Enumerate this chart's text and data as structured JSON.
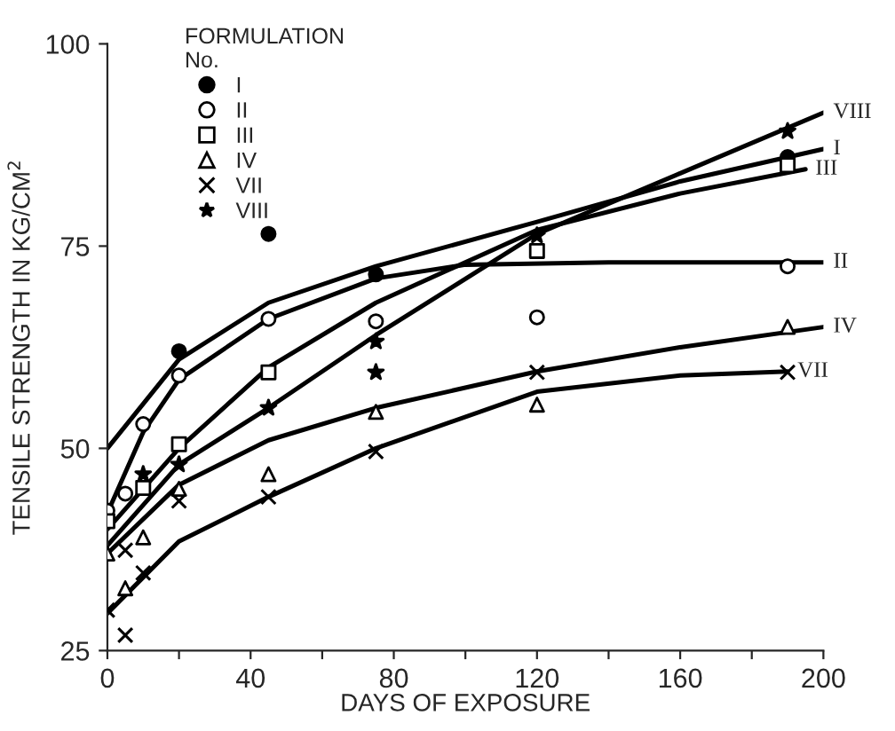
{
  "chart_data": {
    "type": "scatter",
    "xlabel": "DAYS OF EXPOSURE",
    "ylabel": "TENSILE STRENGTH IN KG/CM$^{2}$",
    "legend_title": "FORMULATION\nNo.",
    "legend": "top left",
    "grid": false,
    "xlim": [
      0,
      200
    ],
    "ylim": [
      25,
      100
    ],
    "xticks": [
      0,
      {
        "value": 20,
        "label": null
      },
      40,
      {
        "value": 60,
        "label": null
      },
      80,
      {
        "value": 100,
        "label": null
      },
      120,
      {
        "value": 140,
        "label": null
      },
      160,
      {
        "value": 180,
        "label": null
      },
      200
    ],
    "yticks": [
      25,
      50,
      75,
      100
    ],
    "series": [
      {
        "name": "I",
        "marker": "circle",
        "color": "#000000",
        "x": [
          20,
          45,
          75,
          190
        ],
        "values": [
          62,
          76.5,
          71.5,
          86
        ]
      },
      {
        "name": "II",
        "marker": "circle",
        "color": "#ffffff",
        "x": [
          0,
          5,
          10,
          20,
          45,
          75,
          120,
          190
        ],
        "values": [
          42.3,
          44.4,
          53,
          59,
          66,
          65.7,
          66.2,
          72.5
        ]
      },
      {
        "name": "III",
        "marker": "square",
        "color": "#ffffff",
        "x": [
          0,
          10,
          20,
          45,
          120,
          190
        ],
        "values": [
          41,
          45.1,
          50.5,
          59.4,
          74.4,
          85
        ]
      },
      {
        "name": "IV",
        "marker": "triangle",
        "color": "#ffffff",
        "x": [
          0,
          5,
          10,
          20,
          45,
          75,
          120,
          190
        ],
        "values": [
          37,
          32.7,
          39,
          45,
          46.8,
          54.5,
          55.4,
          65
        ]
      },
      {
        "name": "VII",
        "marker": "cross",
        "color": "#000000",
        "x": [
          0,
          5,
          5,
          10,
          20,
          45,
          75,
          120,
          190
        ],
        "values": [
          30,
          26.9,
          37.4,
          34.6,
          43.5,
          44,
          49.6,
          59.4,
          59.4
        ]
      },
      {
        "name": "VIII",
        "marker": "star",
        "color": "#000000",
        "x": [
          10,
          20,
          45,
          75,
          75,
          120,
          190
        ],
        "values": [
          46.8,
          48,
          55,
          63.2,
          59.4,
          76.3,
          89.2
        ]
      },
      {
        "name": "I",
        "type": "line",
        "color": "#000000",
        "x": [
          0,
          20,
          45,
          75,
          120,
          160,
          200
        ],
        "values": [
          50,
          61,
          68,
          72.5,
          78,
          83,
          87
        ]
      },
      {
        "name": "II",
        "type": "line",
        "color": "#000000",
        "x": [
          0,
          10,
          20,
          45,
          75,
          100,
          140,
          200
        ],
        "values": [
          42,
          52,
          58.5,
          66,
          71,
          72.7,
          73,
          73
        ]
      },
      {
        "name": "III",
        "type": "line",
        "color": "#000000",
        "x": [
          0,
          20,
          45,
          75,
          120,
          160,
          195
        ],
        "values": [
          40,
          50,
          60,
          68,
          77,
          81.5,
          84.5
        ]
      },
      {
        "name": "VIII",
        "type": "line",
        "color": "#000000",
        "x": [
          0,
          20,
          45,
          75,
          120,
          160,
          200
        ],
        "values": [
          38,
          48,
          55,
          64,
          76.5,
          84,
          91.5
        ]
      },
      {
        "name": "IV",
        "type": "line",
        "color": "#000000",
        "x": [
          0,
          20,
          45,
          75,
          120,
          160,
          200
        ],
        "values": [
          37,
          45.5,
          51,
          55,
          59.5,
          62.5,
          65
        ]
      },
      {
        "name": "VII",
        "type": "line",
        "color": "#000000",
        "x": [
          0,
          20,
          45,
          75,
          120,
          160,
          190
        ],
        "values": [
          29.6,
          38.5,
          44,
          50,
          57,
          59,
          59.5
        ]
      }
    ]
  }
}
